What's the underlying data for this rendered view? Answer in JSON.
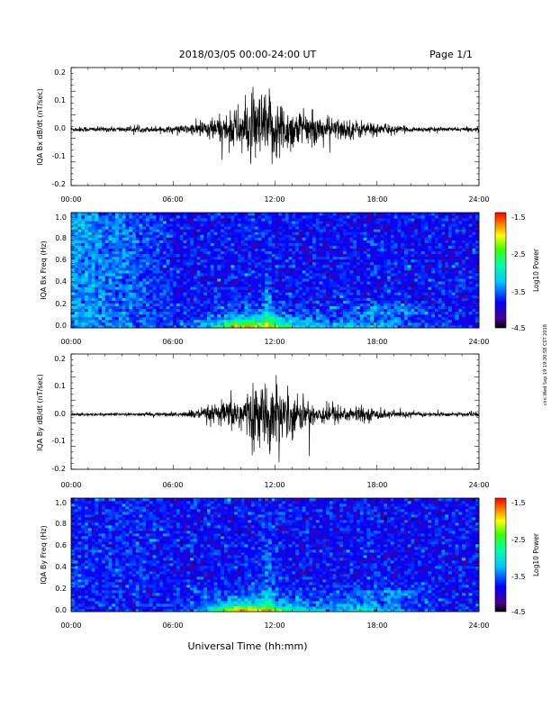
{
  "header": {
    "title": "2018/03/05  00:00-24:00 UT",
    "page": "Page 1/1"
  },
  "footer": {
    "xlabel": "Universal Time (hh:mm)",
    "side_stamp": "ckn Wed Sep 19 19:30:58 CST 2018"
  },
  "chart_data": [
    {
      "type": "line",
      "ylabel": "IQA Bx dB/dt (nT/sec)",
      "xlim": [
        0,
        24
      ],
      "ylim": [
        -0.2,
        0.22
      ],
      "yticks": [
        "0.2",
        "0.1",
        "0.0",
        "-0.1",
        "-0.2"
      ],
      "xticks": [
        "00:00",
        "06:00",
        "12:00",
        "18:00",
        "24:00"
      ],
      "envelope": {
        "hours": [
          0,
          3,
          6,
          7,
          8,
          9,
          10,
          11,
          12,
          13,
          14,
          15,
          16,
          17,
          18,
          19,
          20,
          22,
          24
        ],
        "amp": [
          0.01,
          0.01,
          0.012,
          0.02,
          0.04,
          0.055,
          0.09,
          0.14,
          0.13,
          0.08,
          0.06,
          0.05,
          0.04,
          0.035,
          0.025,
          0.015,
          0.01,
          0.008,
          0.008
        ]
      }
    },
    {
      "type": "heatmap",
      "ylabel": "IQA Bx Freq (Hz)",
      "xlim": [
        0,
        24
      ],
      "ylim": [
        0.0,
        1.05
      ],
      "yticks": [
        "1.0",
        "0.8",
        "0.6",
        "0.4",
        "0.2",
        "0.0"
      ],
      "xticks": [
        "00:00",
        "06:00",
        "12:00",
        "18:00",
        "24:00"
      ],
      "colorbar": {
        "label": "Log10 Power",
        "ticks": [
          "-1.5",
          "-2.5",
          "-3.5",
          "-4.5"
        ],
        "range": [
          -4.5,
          -1.5
        ]
      }
    },
    {
      "type": "line",
      "ylabel": "IQA By dB/dt (nT/sec)",
      "xlim": [
        0,
        24
      ],
      "ylim": [
        -0.2,
        0.22
      ],
      "yticks": [
        "0.2",
        "0.1",
        "0.0",
        "-0.1",
        "-0.2"
      ],
      "xticks": [
        "00:00",
        "06:00",
        "12:00",
        "18:00",
        "24:00"
      ],
      "envelope": {
        "hours": [
          0,
          3,
          6,
          7,
          8,
          9,
          10,
          11,
          12,
          13,
          14,
          15,
          16,
          17,
          18,
          19,
          20,
          22,
          24
        ],
        "amp": [
          0.006,
          0.006,
          0.008,
          0.015,
          0.03,
          0.05,
          0.08,
          0.11,
          0.13,
          0.08,
          0.05,
          0.04,
          0.035,
          0.03,
          0.02,
          0.015,
          0.01,
          0.008,
          0.008
        ]
      }
    },
    {
      "type": "heatmap",
      "ylabel": "IQA By Freq (Hz)",
      "xlim": [
        0,
        24
      ],
      "ylim": [
        0.0,
        1.05
      ],
      "yticks": [
        "1.0",
        "0.8",
        "0.6",
        "0.4",
        "0.2",
        "0.0"
      ],
      "xticks": [
        "00:00",
        "06:00",
        "12:00",
        "18:00",
        "24:00"
      ],
      "colorbar": {
        "label": "Log10 Power",
        "ticks": [
          "-1.5",
          "-2.5",
          "-3.5",
          "-4.5"
        ],
        "range": [
          -4.5,
          -1.5
        ]
      }
    }
  ]
}
